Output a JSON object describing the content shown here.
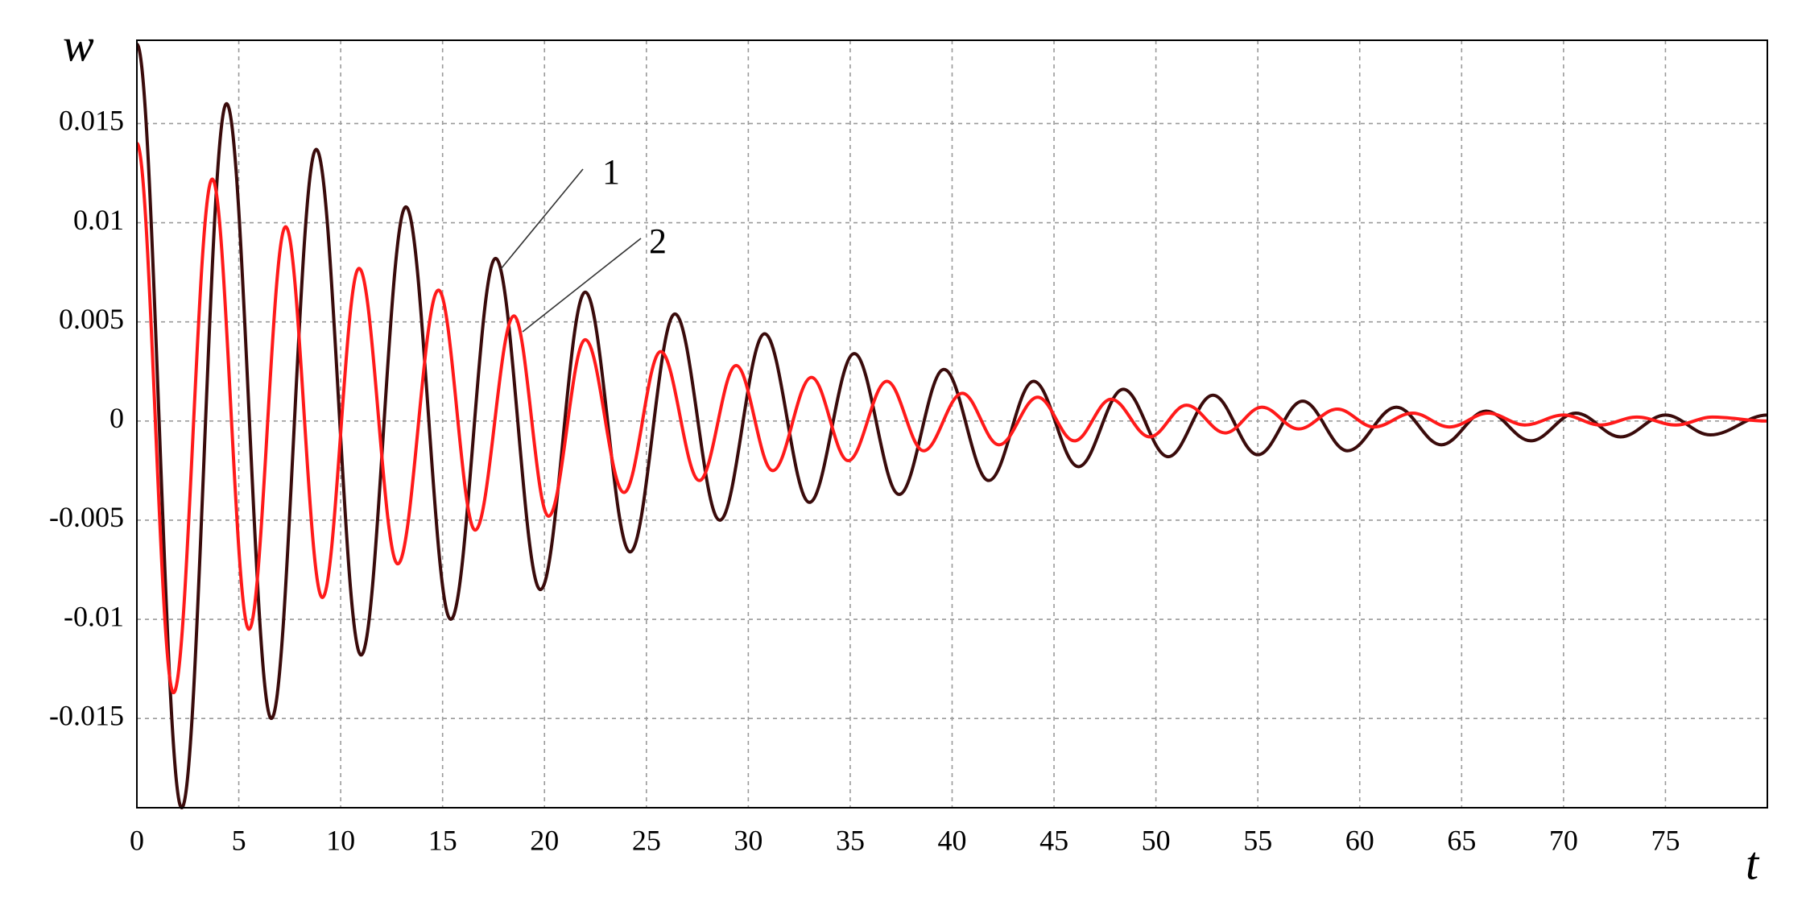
{
  "chart_data": {
    "type": "line",
    "x_label": "t",
    "y_label": "w",
    "xlim": [
      0,
      80
    ],
    "ylim": [
      -0.0195,
      0.0192
    ],
    "xticks": [
      0,
      5,
      10,
      15,
      20,
      25,
      30,
      35,
      40,
      45,
      50,
      55,
      60,
      65,
      70,
      75
    ],
    "yticks": [
      -0.015,
      -0.01,
      -0.005,
      0,
      0.005,
      0.01,
      0.015
    ],
    "grid": true,
    "annotations": [
      "1",
      "2"
    ],
    "series": [
      {
        "name": "1",
        "color": "#3a0b0b",
        "x": [
          0,
          2.2,
          4.4,
          6.6,
          8.8,
          11,
          13.2,
          15.4,
          17.6,
          19.8,
          22,
          24.2,
          26.4,
          28.6,
          30.8,
          33,
          35.2,
          37.4,
          39.6,
          41.8,
          44,
          46.2,
          48.4,
          50.6,
          52.8,
          55,
          57.2,
          59.4,
          61.8,
          64,
          66.2,
          68.4,
          70.6,
          72.8,
          75,
          77.2,
          80
        ],
        "values": [
          0.019,
          -0.0195,
          0.016,
          -0.015,
          0.0137,
          -0.0118,
          0.0108,
          -0.01,
          0.0082,
          -0.0085,
          0.0065,
          -0.0066,
          0.0054,
          -0.005,
          0.0044,
          -0.0041,
          0.0034,
          -0.0037,
          0.0026,
          -0.003,
          0.002,
          -0.0023,
          0.0016,
          -0.0018,
          0.0013,
          -0.0017,
          0.001,
          -0.0015,
          0.0007,
          -0.0012,
          0.0005,
          -0.001,
          0.0004,
          -0.0008,
          0.0003,
          -0.0007,
          0.0003
        ]
      },
      {
        "name": "2",
        "color": "#ff1a1a",
        "x": [
          0,
          1.8,
          3.7,
          5.5,
          7.3,
          9.1,
          10.9,
          12.8,
          14.8,
          16.6,
          18.5,
          20.2,
          22,
          23.9,
          25.7,
          27.6,
          29.4,
          31.2,
          33.1,
          34.9,
          36.8,
          38.6,
          40.5,
          42.3,
          44.2,
          46,
          47.8,
          49.7,
          51.5,
          53.4,
          55.2,
          57,
          58.9,
          60.7,
          62.6,
          64.4,
          66.3,
          68.1,
          70,
          71.8,
          73.6,
          75.5,
          77.3,
          80
        ],
        "values": [
          0.014,
          -0.0137,
          0.0122,
          -0.0105,
          0.0098,
          -0.0089,
          0.0077,
          -0.0072,
          0.0066,
          -0.0055,
          0.0053,
          -0.0048,
          0.0041,
          -0.0036,
          0.0035,
          -0.003,
          0.0028,
          -0.0025,
          0.0022,
          -0.002,
          0.002,
          -0.0015,
          0.0014,
          -0.0012,
          0.0012,
          -0.001,
          0.0011,
          -0.0008,
          0.0008,
          -0.0006,
          0.0007,
          -0.0004,
          0.0006,
          -0.0003,
          0.0004,
          -0.0003,
          0.0004,
          -0.0002,
          0.0003,
          -0.0002,
          0.0002,
          -0.0002,
          0.0002,
          0
        ]
      }
    ]
  }
}
